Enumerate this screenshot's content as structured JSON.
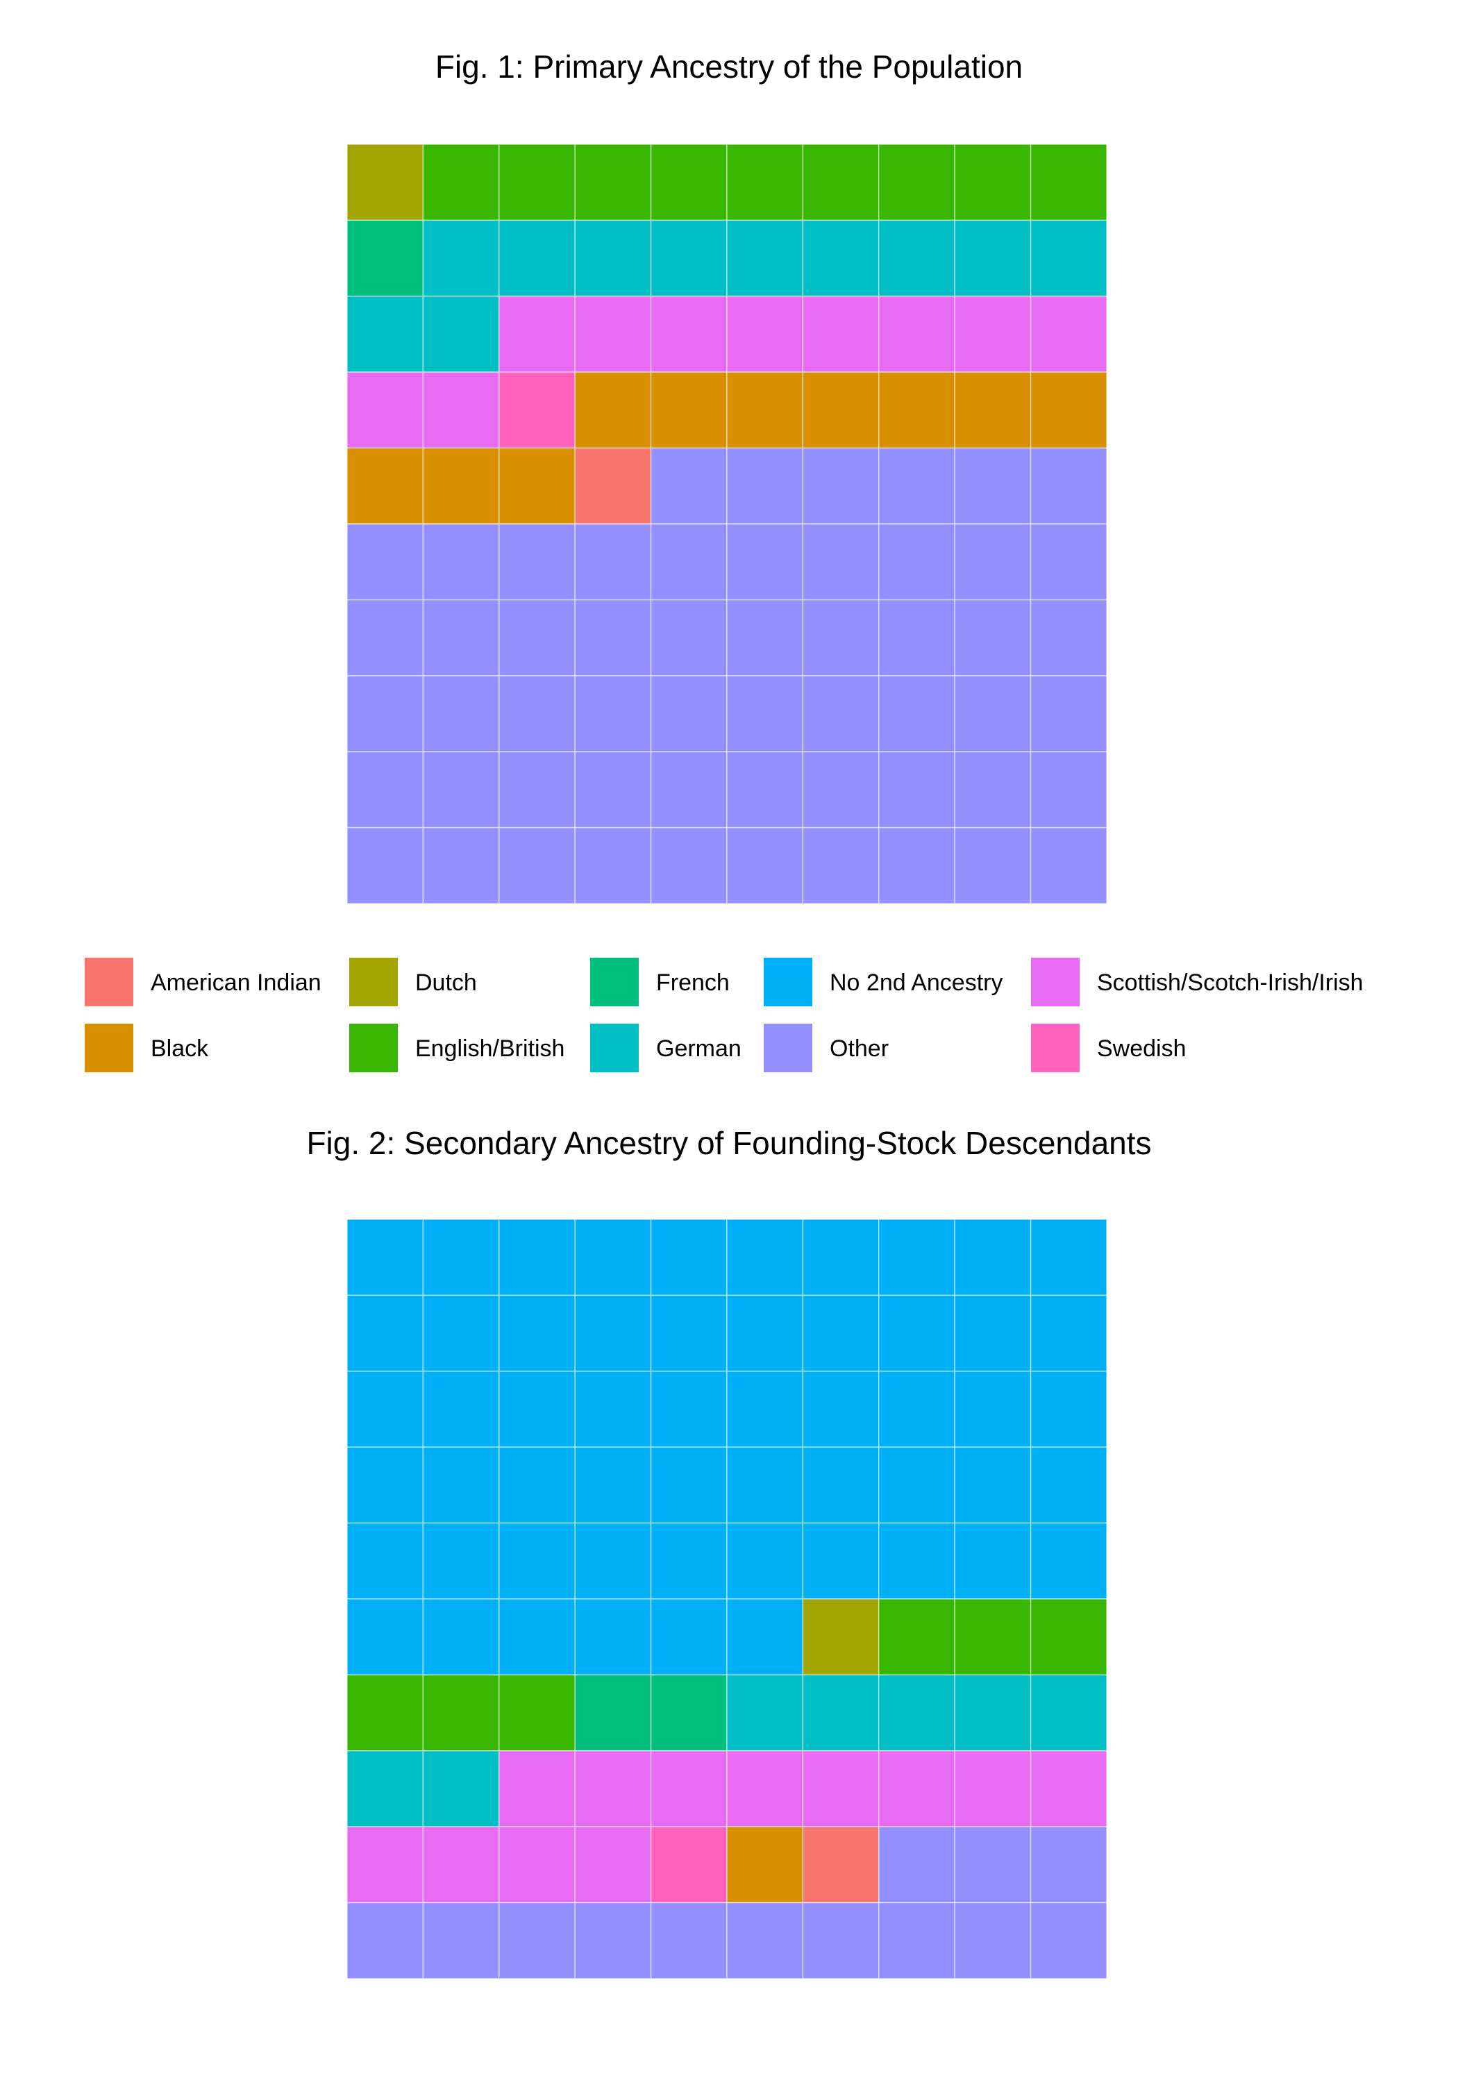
{
  "chart_data": [
    {
      "type": "waffle",
      "title": "Fig. 1: Primary Ancestry of the Population",
      "grid": [
        10,
        10
      ],
      "fill_order": "row-wise from top-left",
      "categories": [
        "Dutch",
        "English/British",
        "French",
        "German",
        "Scottish/Scotch-Irish/Irish",
        "Swedish",
        "Black",
        "American Indian",
        "Other"
      ],
      "values": [
        1,
        9,
        1,
        11,
        10,
        1,
        10,
        1,
        56
      ]
    },
    {
      "type": "waffle",
      "title": "Fig. 2: Secondary Ancestry of Founding-Stock Descendants",
      "grid": [
        10,
        10
      ],
      "fill_order": "row-wise from top-left",
      "categories": [
        "No 2nd Ancestry",
        "Dutch",
        "English/British",
        "French",
        "German",
        "Scottish/Scotch-Irish/Irish",
        "Swedish",
        "Black",
        "American Indian",
        "Other"
      ],
      "values": [
        56,
        1,
        6,
        2,
        7,
        12,
        1,
        1,
        1,
        13
      ]
    }
  ],
  "legend": {
    "placement": "between-figures",
    "items": [
      {
        "label": "American Indian",
        "color": "#F8766D"
      },
      {
        "label": "Dutch",
        "color": "#A3A500"
      },
      {
        "label": "French",
        "color": "#00BF7D"
      },
      {
        "label": "No 2nd Ancestry",
        "color": "#00B0F6"
      },
      {
        "label": "Scottish/Scotch-Irish/Irish",
        "color": "#E76BF3"
      },
      {
        "label": "Black",
        "color": "#D89000"
      },
      {
        "label": "English/British",
        "color": "#39B600"
      },
      {
        "label": "German",
        "color": "#00BFC4"
      },
      {
        "label": "Other",
        "color": "#9590FF"
      },
      {
        "label": "Swedish",
        "color": "#FF62BC"
      }
    ]
  }
}
